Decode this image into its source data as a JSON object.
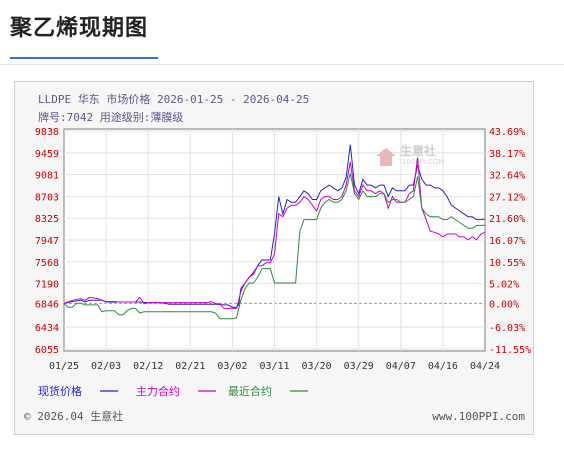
{
  "page_title": "聚乙烯现期图",
  "chart_data": {
    "type": "line",
    "header_line1": "LLDPE 华东 市场价格 2026-01-25 - 2026-04-25",
    "header_line2": "牌号:7042 用途级别:薄膜级",
    "watermark_text": "生意社",
    "watermark_sub": "100PPI.COM",
    "x_ticks": [
      "01/25",
      "02/03",
      "02/12",
      "02/21",
      "03/02",
      "03/11",
      "03/20",
      "03/29",
      "04/07",
      "04/16",
      "04/24"
    ],
    "y_left_ticks": [
      "9838",
      "9459",
      "9081",
      "8703",
      "8325",
      "7947",
      "7568",
      "7190",
      "6846",
      "6434",
      "6055"
    ],
    "y_right_ticks": [
      "43.69%",
      "38.17%",
      "32.64%",
      "27.12%",
      "21.60%",
      "16.07%",
      "10.55%",
      "5.02%",
      "0.00%",
      "-6.03%",
      "-11.55%"
    ],
    "ylim": [
      6055,
      9838
    ],
    "series": [
      {
        "name": "现货价格",
        "color": "#2222cc",
        "values": [
          [
            0,
            6846
          ],
          [
            2,
            6880
          ],
          [
            4,
            6900
          ],
          [
            5,
            6870
          ],
          [
            6,
            6900
          ],
          [
            9,
            6900
          ],
          [
            10,
            6870
          ],
          [
            15,
            6870
          ],
          [
            18,
            6870
          ],
          [
            20,
            6860
          ],
          [
            23,
            6860
          ],
          [
            25,
            6830
          ],
          [
            27,
            6830
          ],
          [
            30,
            6830
          ],
          [
            33,
            6830
          ],
          [
            36,
            6830
          ],
          [
            38,
            6820
          ],
          [
            39,
            6820
          ],
          [
            40,
            6780
          ],
          [
            41,
            6780
          ],
          [
            41.5,
            6820
          ],
          [
            42,
            7100
          ],
          [
            44,
            7300
          ],
          [
            45,
            7380
          ],
          [
            46,
            7500
          ],
          [
            47,
            7600
          ],
          [
            48,
            7600
          ],
          [
            49,
            7600
          ],
          [
            50,
            8050
          ],
          [
            51,
            8700
          ],
          [
            52,
            8400
          ],
          [
            53,
            8650
          ],
          [
            54,
            8600
          ],
          [
            55,
            8600
          ],
          [
            56,
            8700
          ],
          [
            57,
            8800
          ],
          [
            58,
            8750
          ],
          [
            59,
            8650
          ],
          [
            60,
            8650
          ],
          [
            61,
            8800
          ],
          [
            62,
            8850
          ],
          [
            63,
            8900
          ],
          [
            64,
            8850
          ],
          [
            65,
            8800
          ],
          [
            66,
            8850
          ],
          [
            67,
            9030
          ],
          [
            68,
            9600
          ],
          [
            69,
            8900
          ],
          [
            70,
            8750
          ],
          [
            71,
            9000
          ],
          [
            72,
            8900
          ],
          [
            73,
            8900
          ],
          [
            74,
            8850
          ],
          [
            75,
            8900
          ],
          [
            76,
            8900
          ],
          [
            77,
            8700
          ],
          [
            78,
            8850
          ],
          [
            79,
            8800
          ],
          [
            80,
            8800
          ],
          [
            81,
            8800
          ],
          [
            82,
            8900
          ],
          [
            83,
            8900
          ],
          [
            84,
            9250
          ],
          [
            85,
            9000
          ],
          [
            86,
            8900
          ],
          [
            87,
            8900
          ],
          [
            88,
            8850
          ],
          [
            89,
            8850
          ],
          [
            90,
            8800
          ],
          [
            91,
            8700
          ],
          [
            92,
            8550
          ],
          [
            93,
            8500
          ],
          [
            94,
            8450
          ],
          [
            95,
            8400
          ],
          [
            96,
            8350
          ],
          [
            97,
            8350
          ],
          [
            98,
            8300
          ],
          [
            99,
            8300
          ],
          [
            100,
            8310
          ]
        ]
      },
      {
        "name": "主力合约",
        "color": "#cc00cc",
        "values": [
          [
            0,
            6846
          ],
          [
            2,
            6900
          ],
          [
            4,
            6930
          ],
          [
            5,
            6900
          ],
          [
            6,
            6950
          ],
          [
            8,
            6930
          ],
          [
            9,
            6900
          ],
          [
            10,
            6880
          ],
          [
            12,
            6880
          ],
          [
            13,
            6870
          ],
          [
            15,
            6870
          ],
          [
            17,
            6870
          ],
          [
            18,
            6950
          ],
          [
            19,
            6840
          ],
          [
            20,
            6860
          ],
          [
            22,
            6860
          ],
          [
            24,
            6860
          ],
          [
            26,
            6860
          ],
          [
            28,
            6860
          ],
          [
            30,
            6860
          ],
          [
            32,
            6860
          ],
          [
            34,
            6860
          ],
          [
            35,
            6880
          ],
          [
            36,
            6840
          ],
          [
            37,
            6840
          ],
          [
            38,
            6760
          ],
          [
            39,
            6760
          ],
          [
            40,
            6760
          ],
          [
            41,
            6760
          ],
          [
            42,
            7050
          ],
          [
            43,
            7200
          ],
          [
            44,
            7300
          ],
          [
            45,
            7350
          ],
          [
            46,
            7500
          ],
          [
            47,
            7500
          ],
          [
            48,
            7550
          ],
          [
            49,
            7550
          ],
          [
            50,
            7700
          ],
          [
            51,
            8400
          ],
          [
            52,
            8350
          ],
          [
            53,
            8500
          ],
          [
            54,
            8550
          ],
          [
            55,
            8550
          ],
          [
            56,
            8600
          ],
          [
            57,
            8700
          ],
          [
            58,
            8650
          ],
          [
            59,
            8550
          ],
          [
            60,
            8450
          ],
          [
            61,
            8650
          ],
          [
            62,
            8700
          ],
          [
            63,
            8700
          ],
          [
            64,
            8650
          ],
          [
            65,
            8650
          ],
          [
            66,
            8700
          ],
          [
            67,
            8900
          ],
          [
            68,
            9300
          ],
          [
            69,
            8800
          ],
          [
            70,
            8700
          ],
          [
            71,
            8900
          ],
          [
            72,
            8800
          ],
          [
            73,
            8800
          ],
          [
            74,
            8750
          ],
          [
            75,
            8800
          ],
          [
            76,
            8750
          ],
          [
            77,
            8500
          ],
          [
            78,
            8700
          ],
          [
            79,
            8600
          ],
          [
            80,
            8600
          ],
          [
            81,
            8600
          ],
          [
            82,
            8750
          ],
          [
            83,
            8800
          ],
          [
            84,
            9380
          ],
          [
            85,
            8500
          ],
          [
            86,
            8300
          ],
          [
            87,
            8100
          ],
          [
            88,
            8080
          ],
          [
            89,
            8050
          ],
          [
            90,
            8000
          ],
          [
            91,
            8050
          ],
          [
            92,
            8050
          ],
          [
            93,
            8050
          ],
          [
            94,
            8000
          ],
          [
            95,
            8000
          ],
          [
            96,
            7950
          ],
          [
            97,
            8000
          ],
          [
            98,
            7950
          ],
          [
            99,
            8050
          ],
          [
            100,
            8080
          ]
        ]
      },
      {
        "name": "最近合约",
        "color": "#2e8b3e",
        "values": [
          [
            0,
            6846
          ],
          [
            1,
            6780
          ],
          [
            2,
            6780
          ],
          [
            3,
            6850
          ],
          [
            4,
            6850
          ],
          [
            5,
            6820
          ],
          [
            7,
            6820
          ],
          [
            8,
            6820
          ],
          [
            9,
            6700
          ],
          [
            10,
            6720
          ],
          [
            11,
            6720
          ],
          [
            12,
            6720
          ],
          [
            13,
            6650
          ],
          [
            14,
            6650
          ],
          [
            15,
            6720
          ],
          [
            16,
            6760
          ],
          [
            17,
            6760
          ],
          [
            18,
            6680
          ],
          [
            19,
            6700
          ],
          [
            20,
            6700
          ],
          [
            22,
            6700
          ],
          [
            24,
            6700
          ],
          [
            26,
            6700
          ],
          [
            28,
            6700
          ],
          [
            30,
            6700
          ],
          [
            32,
            6700
          ],
          [
            34,
            6700
          ],
          [
            35,
            6700
          ],
          [
            36,
            6680
          ],
          [
            37,
            6580
          ],
          [
            38,
            6580
          ],
          [
            39,
            6580
          ],
          [
            40,
            6580
          ],
          [
            41,
            6600
          ],
          [
            42,
            6900
          ],
          [
            43,
            7100
          ],
          [
            44,
            7200
          ],
          [
            45,
            7200
          ],
          [
            46,
            7300
          ],
          [
            47,
            7450
          ],
          [
            48,
            7450
          ],
          [
            49,
            7450
          ],
          [
            50,
            7200
          ],
          [
            51,
            7200
          ],
          [
            52,
            7200
          ],
          [
            53,
            7200
          ],
          [
            54,
            7200
          ],
          [
            55,
            7200
          ],
          [
            56,
            8100
          ],
          [
            57,
            8300
          ],
          [
            58,
            8300
          ],
          [
            59,
            8300
          ],
          [
            60,
            8300
          ],
          [
            61,
            8500
          ],
          [
            62,
            8600
          ],
          [
            63,
            8650
          ],
          [
            64,
            8600
          ],
          [
            65,
            8600
          ],
          [
            66,
            8650
          ],
          [
            67,
            8800
          ],
          [
            68,
            9100
          ],
          [
            69,
            8750
          ],
          [
            70,
            8650
          ],
          [
            71,
            8800
          ],
          [
            72,
            8700
          ],
          [
            73,
            8700
          ],
          [
            74,
            8700
          ],
          [
            75,
            8750
          ],
          [
            76,
            8750
          ],
          [
            77,
            8600
          ],
          [
            78,
            8650
          ],
          [
            79,
            8650
          ],
          [
            80,
            8600
          ],
          [
            81,
            8600
          ],
          [
            82,
            8650
          ],
          [
            83,
            8700
          ],
          [
            84,
            9050
          ],
          [
            85,
            8500
          ],
          [
            86,
            8400
          ],
          [
            87,
            8350
          ],
          [
            88,
            8350
          ],
          [
            89,
            8350
          ],
          [
            90,
            8300
          ],
          [
            91,
            8300
          ],
          [
            92,
            8350
          ],
          [
            93,
            8300
          ],
          [
            94,
            8250
          ],
          [
            95,
            8200
          ],
          [
            96,
            8150
          ],
          [
            97,
            8150
          ],
          [
            98,
            8200
          ],
          [
            99,
            8200
          ],
          [
            100,
            8200
          ]
        ]
      }
    ],
    "legend": [
      {
        "label": "现货价格",
        "color": "#2222cc"
      },
      {
        "label": "主力合约",
        "color": "#cc00cc"
      },
      {
        "label": "最近合约",
        "color": "#2e8b3e"
      }
    ],
    "footer_left": "© 2026.04 生意社",
    "footer_right": "www.100PPI.com"
  }
}
